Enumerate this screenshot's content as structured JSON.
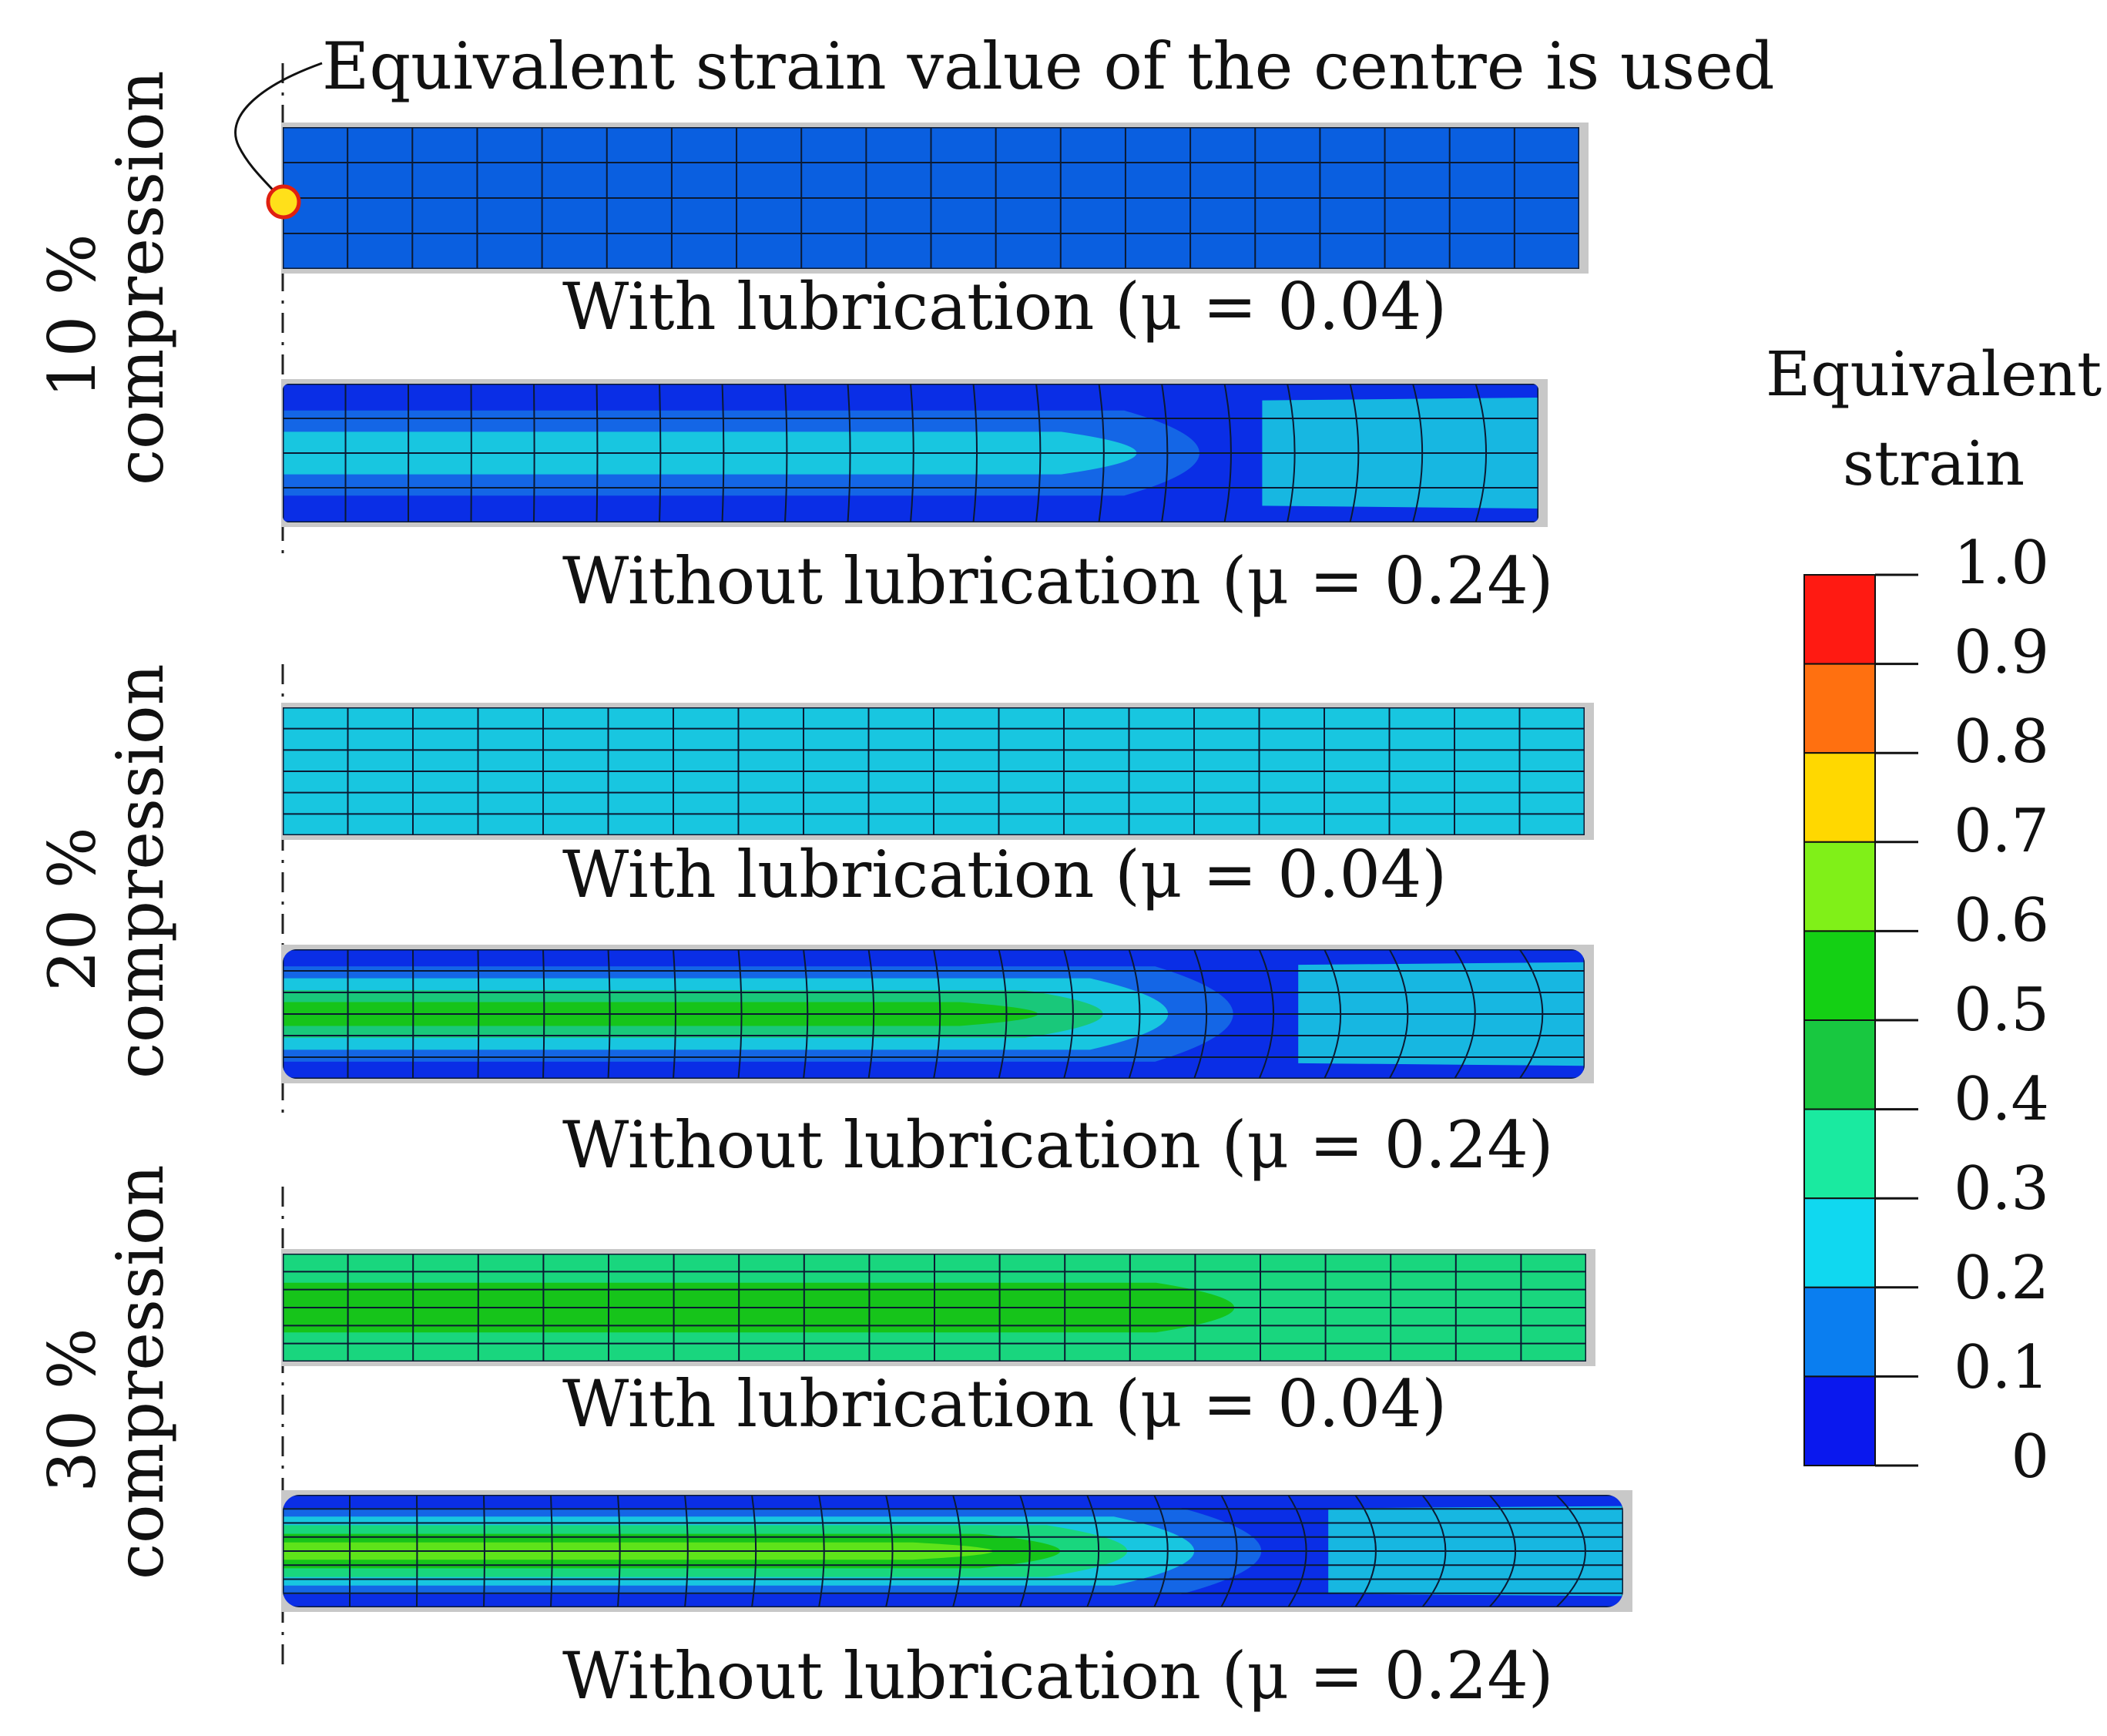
{
  "annotation": "Equivalent strain value of the centre is used",
  "groups": [
    {
      "label": "10 % compression",
      "label_lines": [
        "10 %",
        "compression"
      ],
      "cases": [
        {
          "caption": "With lubrication (μ = 0.04)",
          "color_bands": [
            "#0a5fe0"
          ]
        },
        {
          "caption": "Without lubrication (μ = 0.24)",
          "color_bands": [
            "#0a2ee6",
            "#1466e6",
            "#18c6e0"
          ]
        }
      ]
    },
    {
      "label": "20 % compression",
      "label_lines": [
        "20 %",
        "compression"
      ],
      "cases": [
        {
          "caption": "With lubrication (μ = 0.04)",
          "color_bands": [
            "#18c6e0"
          ]
        },
        {
          "caption": "Without lubrication (μ = 0.24)",
          "color_bands": [
            "#0a2ee6",
            "#1466e6",
            "#18c6e0",
            "#19c87a",
            "#16c41a"
          ]
        }
      ]
    },
    {
      "label": "30 % compression",
      "label_lines": [
        "30 %",
        "compression"
      ],
      "cases": [
        {
          "caption": "With lubrication (μ = 0.04)",
          "color_bands": [
            "#19d67e",
            "#16c41a"
          ]
        },
        {
          "caption": "Without lubrication (μ = 0.24)",
          "color_bands": [
            "#0a2ee6",
            "#1466e6",
            "#18c6e0",
            "#19d67e",
            "#16c41a",
            "#5ee31a"
          ]
        }
      ]
    }
  ],
  "legend": {
    "title_lines": [
      "Equivalent",
      "strain"
    ],
    "ticks": [
      "1.0",
      "0.9",
      "0.8",
      "0.7",
      "0.6",
      "0.5",
      "0.4",
      "0.3",
      "0.2",
      "0.1",
      "0"
    ],
    "colors_top_to_bottom": [
      "#ff1a12",
      "#ff7010",
      "#ffd800",
      "#80f018",
      "#14d014",
      "#18c840",
      "#1aeaa0",
      "#10d8f0",
      "#0a7ef0",
      "#0a18ee"
    ]
  }
}
